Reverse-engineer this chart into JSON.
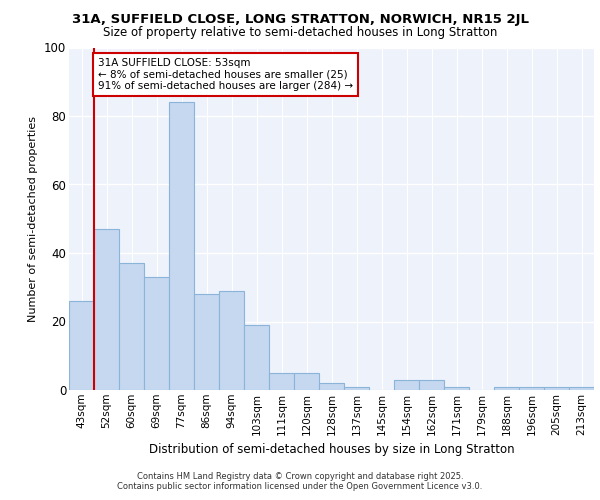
{
  "title_line1": "31A, SUFFIELD CLOSE, LONG STRATTON, NORWICH, NR15 2JL",
  "title_line2": "Size of property relative to semi-detached houses in Long Stratton",
  "xlabel": "Distribution of semi-detached houses by size in Long Stratton",
  "ylabel": "Number of semi-detached properties",
  "categories": [
    "43sqm",
    "52sqm",
    "60sqm",
    "69sqm",
    "77sqm",
    "86sqm",
    "94sqm",
    "103sqm",
    "111sqm",
    "120sqm",
    "128sqm",
    "137sqm",
    "145sqm",
    "154sqm",
    "162sqm",
    "171sqm",
    "179sqm",
    "188sqm",
    "196sqm",
    "205sqm",
    "213sqm"
  ],
  "values": [
    26,
    47,
    37,
    33,
    84,
    28,
    29,
    19,
    5,
    5,
    2,
    1,
    0,
    3,
    3,
    1,
    0,
    1,
    1,
    1,
    1
  ],
  "bar_color": "#c5d8f0",
  "bar_edge_color": "#8ab4d8",
  "property_index": 1,
  "property_label": "31A SUFFIELD CLOSE: 53sqm",
  "pct_smaller": 8,
  "count_smaller": 25,
  "pct_larger": 91,
  "count_larger": 284,
  "vline_color": "#cc0000",
  "annotation_box_color": "#cc0000",
  "ylim": [
    0,
    100
  ],
  "yticks": [
    0,
    20,
    40,
    60,
    80,
    100
  ],
  "background_color": "#eef2fb",
  "grid_color": "#ffffff",
  "footer_line1": "Contains HM Land Registry data © Crown copyright and database right 2025.",
  "footer_line2": "Contains public sector information licensed under the Open Government Licence v3.0."
}
